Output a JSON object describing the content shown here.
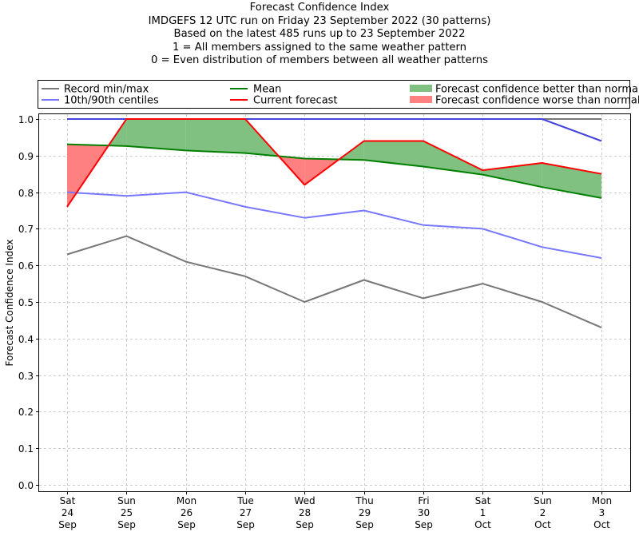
{
  "chart_data": {
    "type": "line",
    "title": "Forecast Confidence Index",
    "subtitle_lines": [
      "IMDGEFS 12 UTC run on Friday 23 September 2022 (30 patterns)",
      "Based on the latest 485 runs up to 23 September 2022",
      "1 = All members assigned to the same weather pattern",
      "0 = Even distribution of members between all weather patterns"
    ],
    "xlabel": "",
    "ylabel": "Forecast Confidence Index",
    "ylim": [
      0.0,
      1.0
    ],
    "grid": true,
    "legend_position": "top",
    "categories": [
      [
        "Sat",
        "24",
        "Sep"
      ],
      [
        "Sun",
        "25",
        "Sep"
      ],
      [
        "Mon",
        "26",
        "Sep"
      ],
      [
        "Tue",
        "27",
        "Sep"
      ],
      [
        "Wed",
        "28",
        "Sep"
      ],
      [
        "Thu",
        "29",
        "Sep"
      ],
      [
        "Fri",
        "30",
        "Sep"
      ],
      [
        "Sat",
        "1",
        "Oct"
      ],
      [
        "Sun",
        "2",
        "Oct"
      ],
      [
        "Mon",
        "3",
        "Oct"
      ]
    ],
    "yticks": [
      "0.0",
      "0.1",
      "0.2",
      "0.3",
      "0.4",
      "0.5",
      "0.6",
      "0.7",
      "0.8",
      "0.9",
      "1.0"
    ],
    "ytick_values": [
      0.0,
      0.1,
      0.2,
      0.3,
      0.4,
      0.5,
      0.6,
      0.7,
      0.8,
      0.9,
      1.0
    ],
    "series": [
      {
        "name": "Record min",
        "legend": "Record min/max",
        "color": "#777777",
        "values": [
          0.63,
          0.68,
          0.61,
          0.57,
          0.5,
          0.56,
          0.51,
          0.55,
          0.5,
          0.43
        ]
      },
      {
        "name": "Record max",
        "legend": "Record min/max",
        "color": "#777777",
        "values": [
          1.0,
          1.0,
          1.0,
          1.0,
          1.0,
          1.0,
          1.0,
          1.0,
          1.0,
          1.0
        ]
      },
      {
        "name": "10th centile",
        "legend": "10th/90th centiles",
        "color": "#7777ff",
        "values": [
          0.8,
          0.79,
          0.8,
          0.76,
          0.73,
          0.75,
          0.71,
          0.7,
          0.65,
          0.62
        ]
      },
      {
        "name": "90th centile",
        "legend": "10th/90th centiles",
        "color": "#7777ff",
        "values": [
          1.0,
          1.0,
          1.0,
          1.0,
          1.0,
          1.0,
          1.0,
          1.0,
          1.0,
          0.94
        ]
      },
      {
        "name": "Mean",
        "legend": "Mean",
        "color": "#008000",
        "values": [
          0.931,
          0.926,
          0.914,
          0.907,
          0.892,
          0.888,
          0.87,
          0.848,
          0.814,
          0.784
        ]
      },
      {
        "name": "Current forecast",
        "legend": "Current forecast",
        "color": "#ff0000",
        "values": [
          0.76,
          1.0,
          1.0,
          1.0,
          0.82,
          0.94,
          0.94,
          0.86,
          0.88,
          0.85
        ]
      }
    ],
    "fills": [
      {
        "name": "Forecast confidence better than normal",
        "color": "#80c080"
      },
      {
        "name": "Forecast confidence worse than normal",
        "color": "#ff8080"
      }
    ],
    "legend": [
      {
        "label": "Record min/max",
        "kind": "line",
        "color": "#777777"
      },
      {
        "label": "10th/90th centiles",
        "kind": "line",
        "color": "#7777ff"
      },
      {
        "label": "Mean",
        "kind": "line",
        "color": "#008000"
      },
      {
        "label": "Current forecast",
        "kind": "line",
        "color": "#ff0000"
      },
      {
        "label": "Forecast confidence better than normal",
        "kind": "patch",
        "color": "#80c080"
      },
      {
        "label": "Forecast confidence worse than normal",
        "kind": "patch",
        "color": "#ff8080"
      }
    ]
  }
}
